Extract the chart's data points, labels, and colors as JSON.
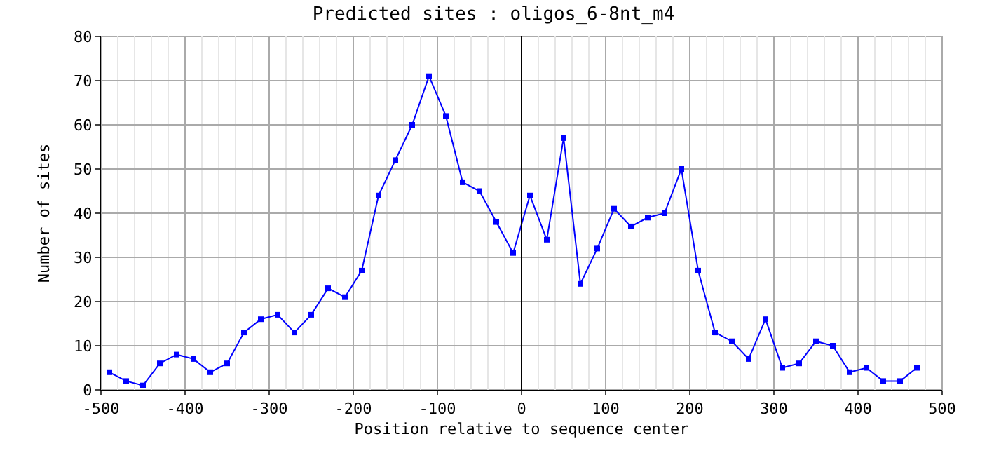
{
  "chart_data": {
    "type": "line",
    "title": "Predicted sites : oligos_6-8nt_m4",
    "xlabel": "Position relative to sequence center",
    "ylabel": "Number of sites",
    "x": [
      -490,
      -470,
      -450,
      -430,
      -410,
      -390,
      -370,
      -350,
      -330,
      -310,
      -290,
      -270,
      -250,
      -230,
      -210,
      -190,
      -170,
      -150,
      -130,
      -110,
      -90,
      -70,
      -50,
      -30,
      -10,
      10,
      30,
      50,
      70,
      90,
      110,
      130,
      150,
      170,
      190,
      210,
      230,
      250,
      270,
      290,
      310,
      330,
      350,
      370,
      390,
      410,
      430,
      450,
      470
    ],
    "series": [
      {
        "color": "#0000ff",
        "values": [
          4,
          2,
          1,
          6,
          8,
          7,
          4,
          6,
          13,
          16,
          17,
          13,
          17,
          23,
          21,
          27,
          44,
          52,
          60,
          71,
          62,
          47,
          45,
          38,
          31,
          44,
          34,
          57,
          24,
          32,
          41,
          37,
          39,
          40,
          50,
          27,
          13,
          11,
          7,
          16,
          5,
          6,
          11,
          10,
          4,
          5,
          2,
          2,
          5
        ]
      }
    ],
    "xlim": [
      -500,
      500
    ],
    "xticks": [
      -500,
      -400,
      -300,
      -200,
      -100,
      0,
      100,
      200,
      300,
      400,
      500
    ],
    "ylim": [
      0,
      80
    ],
    "yticks": [
      0,
      10,
      20,
      30,
      40,
      50,
      60,
      70,
      80
    ],
    "ref_lines": [
      {
        "axis": "x",
        "value": 0,
        "color": "#000000"
      }
    ],
    "grid": true,
    "marker": "square",
    "line_style": "solid"
  }
}
